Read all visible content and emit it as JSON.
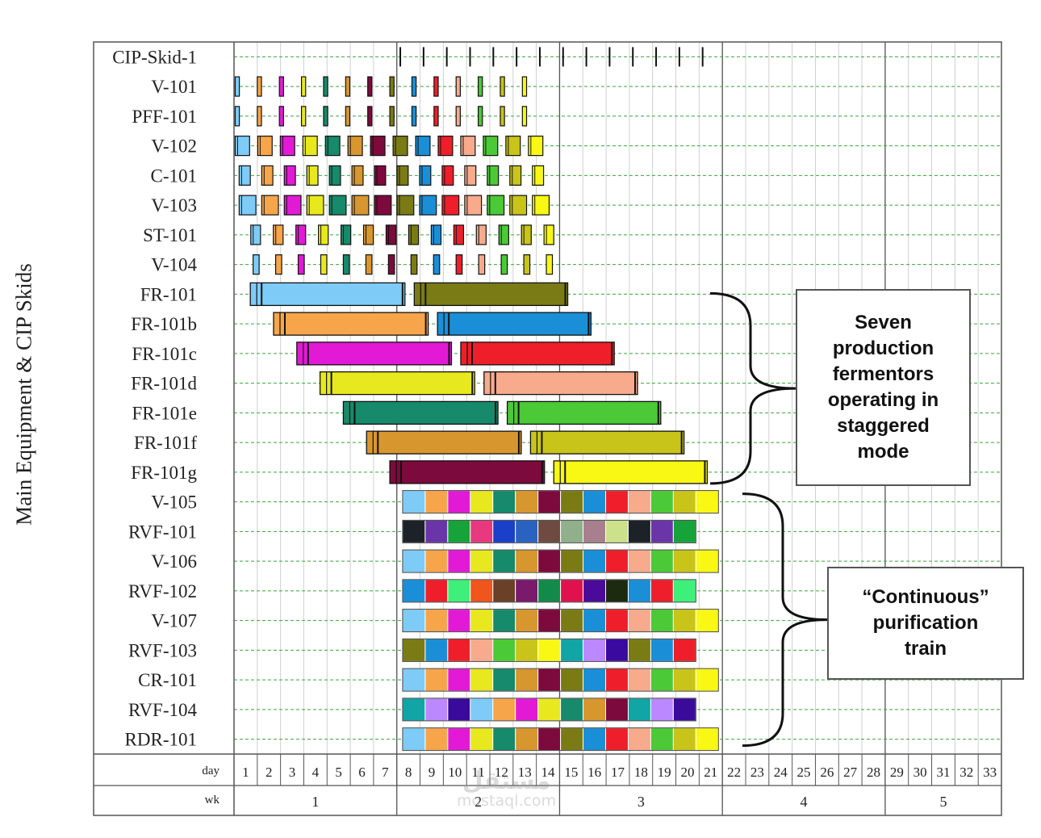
{
  "chart_data": {
    "type": "gantt",
    "ylabel": "Main Equipment & CIP Skids",
    "day_label": "day",
    "week_label": "wk",
    "days": [
      "1",
      "2",
      "3",
      "4",
      "5",
      "6",
      "7",
      "8",
      "9",
      "10",
      "11",
      "12",
      "13",
      "14",
      "15",
      "16",
      "17",
      "18",
      "19",
      "20",
      "21",
      "22",
      "23",
      "24",
      "25",
      "26",
      "27",
      "28",
      "29",
      "30",
      "31",
      "32",
      "33"
    ],
    "weeks": [
      {
        "label": "1",
        "start": 0,
        "end": 7
      },
      {
        "label": "2",
        "start": 7,
        "end": 14
      },
      {
        "label": "3",
        "start": 14,
        "end": 21
      },
      {
        "label": "4",
        "start": 21,
        "end": 28
      },
      {
        "label": "5",
        "start": 28,
        "end": 33
      }
    ],
    "batch_colors": [
      "#7ecbf7",
      "#f7a54a",
      "#e21ad6",
      "#e8e81f",
      "#168a6a",
      "#d8962f",
      "#7d0a3c",
      "#7b7b15",
      "#1a8fd8",
      "#ee1f2a",
      "#f7ab8c",
      "#4cc936",
      "#c9c41a",
      "#f8f814"
    ],
    "rows": [
      {
        "name": "CIP-Skid-1",
        "type": "ticks",
        "first": 7.15,
        "step": 1.0,
        "n": 14
      },
      {
        "name": "V-101",
        "type": "batch",
        "first": 0.05,
        "step": 0.95,
        "n": 14,
        "width": 0.18
      },
      {
        "name": "PFF-101",
        "type": "batch",
        "first": 0.05,
        "step": 0.95,
        "n": 14,
        "width": 0.18
      },
      {
        "name": "V-102",
        "type": "batch",
        "first": 0.05,
        "step": 0.97,
        "n": 14,
        "width": 0.62
      },
      {
        "name": "C-101",
        "type": "batch",
        "first": 0.22,
        "step": 0.97,
        "n": 14,
        "width": 0.48
      },
      {
        "name": "V-103",
        "type": "batch",
        "first": 0.22,
        "step": 0.97,
        "n": 14,
        "width": 0.72
      },
      {
        "name": "ST-101",
        "type": "batch",
        "first": 0.72,
        "step": 0.97,
        "n": 14,
        "width": 0.42
      },
      {
        "name": "V-104",
        "type": "batch",
        "first": 0.82,
        "step": 0.97,
        "n": 14,
        "width": 0.26
      },
      {
        "name": "FR-101",
        "type": "ferm",
        "bars": [
          {
            "start": 0.7,
            "end": 7.35,
            "c": 0
          },
          {
            "start": 7.75,
            "end": 14.35,
            "c": 7
          }
        ]
      },
      {
        "name": "FR-101b",
        "type": "ferm",
        "bars": [
          {
            "start": 1.7,
            "end": 8.35,
            "c": 1
          },
          {
            "start": 8.75,
            "end": 15.35,
            "c": 8
          }
        ]
      },
      {
        "name": "FR-101c",
        "type": "ferm",
        "bars": [
          {
            "start": 2.7,
            "end": 9.35,
            "c": 2
          },
          {
            "start": 9.75,
            "end": 16.35,
            "c": 9
          }
        ]
      },
      {
        "name": "FR-101d",
        "type": "ferm",
        "bars": [
          {
            "start": 3.7,
            "end": 10.35,
            "c": 3
          },
          {
            "start": 10.75,
            "end": 17.35,
            "c": 10
          }
        ]
      },
      {
        "name": "FR-101e",
        "type": "ferm",
        "bars": [
          {
            "start": 4.7,
            "end": 11.35,
            "c": 4
          },
          {
            "start": 11.75,
            "end": 18.35,
            "c": 11
          }
        ]
      },
      {
        "name": "FR-101f",
        "type": "ferm",
        "bars": [
          {
            "start": 5.7,
            "end": 12.35,
            "c": 5
          },
          {
            "start": 12.75,
            "end": 19.35,
            "c": 12
          }
        ]
      },
      {
        "name": "FR-101g",
        "type": "ferm",
        "bars": [
          {
            "start": 6.7,
            "end": 13.35,
            "c": 6
          },
          {
            "start": 13.75,
            "end": 20.35,
            "c": 13
          }
        ]
      },
      {
        "name": "V-105",
        "type": "cont",
        "start": 7.25,
        "n": 14,
        "w": 0.97,
        "palette": "batch"
      },
      {
        "name": "RVF-101",
        "type": "cont",
        "start": 7.25,
        "n": 13,
        "w": 0.97,
        "palette": [
          "#1c2228",
          "#6a35a8",
          "#16a33a",
          "#e8387f",
          "#1a3fc8",
          "#2a62c0",
          "#6f4a40",
          "#8fb08a",
          "#a87f8c",
          "#cde08a"
        ]
      },
      {
        "name": "V-106",
        "type": "cont",
        "start": 7.25,
        "n": 14,
        "w": 0.97,
        "palette": "batch"
      },
      {
        "name": "RVF-102",
        "type": "cont",
        "start": 7.25,
        "n": 13,
        "w": 0.97,
        "palette": [
          "#1a8fd8",
          "#ee1f2a",
          "#3ef07a",
          "#f0551c",
          "#6a4028",
          "#7a1a6a",
          "#128a4a",
          "#e0124e",
          "#4a0a9a",
          "#1c2a10"
        ]
      },
      {
        "name": "V-107",
        "type": "cont",
        "start": 7.25,
        "n": 14,
        "w": 0.97,
        "palette": "batch"
      },
      {
        "name": "RVF-103",
        "type": "cont",
        "start": 7.25,
        "n": 13,
        "w": 0.97,
        "palette": [
          "#7b7b15",
          "#1a8fd8",
          "#ee1f2a",
          "#f7ab8c",
          "#4cc936",
          "#c9c41a",
          "#f8f814",
          "#11a5a5",
          "#bb88ff",
          "#3a0aa0"
        ]
      },
      {
        "name": "CR-101",
        "type": "cont",
        "start": 7.25,
        "n": 14,
        "w": 0.97,
        "palette": "batch"
      },
      {
        "name": "RVF-104",
        "type": "cont",
        "start": 7.25,
        "n": 13,
        "w": 0.97,
        "palette": [
          "#11a5a5",
          "#bb88ff",
          "#3a0a9a",
          "#7ecbf7",
          "#f7a54a",
          "#e21ad6",
          "#e8e81f",
          "#168a6a",
          "#d8962f",
          "#7d0a3c"
        ]
      },
      {
        "name": "RDR-101",
        "type": "cont",
        "start": 7.25,
        "n": 14,
        "w": 0.97,
        "palette": "batch"
      }
    ],
    "annotations": [
      {
        "lines": [
          "Seven",
          "production",
          "fermentors",
          "operating in",
          "staggered",
          "mode"
        ]
      },
      {
        "lines": [
          "“Continuous”",
          "purification",
          "train"
        ]
      }
    ]
  },
  "watermark": {
    "line1": "مستقل",
    "line2": "mostaql.com"
  }
}
